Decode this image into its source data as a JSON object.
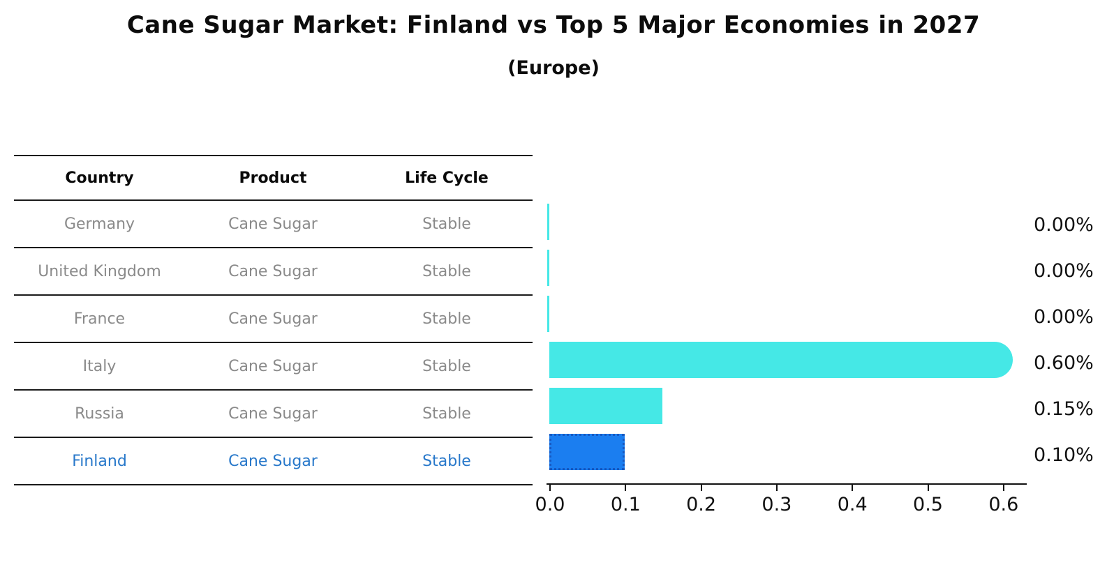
{
  "title": "Cane Sugar Market: Finland vs Top 5 Major Economies in 2027",
  "subtitle": "(Europe)",
  "table": {
    "headers": [
      "Country",
      "Product",
      "Life Cycle"
    ],
    "rows": [
      {
        "country": "Germany",
        "product": "Cane Sugar",
        "life_cycle": "Stable"
      },
      {
        "country": "United Kingdom",
        "product": "Cane Sugar",
        "life_cycle": "Stable"
      },
      {
        "country": "France",
        "product": "Cane Sugar",
        "life_cycle": "Stable"
      },
      {
        "country": "Italy",
        "product": "Cane Sugar",
        "life_cycle": "Stable"
      },
      {
        "country": "Russia",
        "product": "Cane Sugar",
        "life_cycle": "Stable"
      },
      {
        "country": "Finland",
        "product": "Cane Sugar",
        "life_cycle": "Stable"
      }
    ],
    "highlighted_row": "Finland"
  },
  "chart_data": {
    "type": "bar",
    "orientation": "horizontal",
    "title": "Cane Sugar Market: Finland vs Top 5 Major Economies in 2027",
    "subtitle": "(Europe)",
    "categories": [
      "Germany",
      "United Kingdom",
      "France",
      "Italy",
      "Russia",
      "Finland"
    ],
    "values": [
      0.0,
      0.0,
      0.0,
      0.6,
      0.15,
      0.1
    ],
    "value_labels": [
      "0.00%",
      "0.00%",
      "0.00%",
      "0.60%",
      "0.15%",
      "0.10%"
    ],
    "x_ticks": [
      0.0,
      0.1,
      0.2,
      0.3,
      0.4,
      0.5,
      0.6
    ],
    "x_tick_labels": [
      "0.0",
      "0.1",
      "0.2",
      "0.3",
      "0.4",
      "0.5",
      "0.6"
    ],
    "xlim": [
      0,
      0.63
    ],
    "grid": false,
    "legend": false,
    "highlight_index": 5,
    "colors": {
      "default_bar": "#45e8e6",
      "highlight_bar": "#1b7ef0",
      "highlight_bar_border": "#1659c2",
      "axis_text": "#111111",
      "value_label_text": "#111111",
      "table_text": "#8a8a8a",
      "highlight_text": "#2878ca"
    }
  }
}
